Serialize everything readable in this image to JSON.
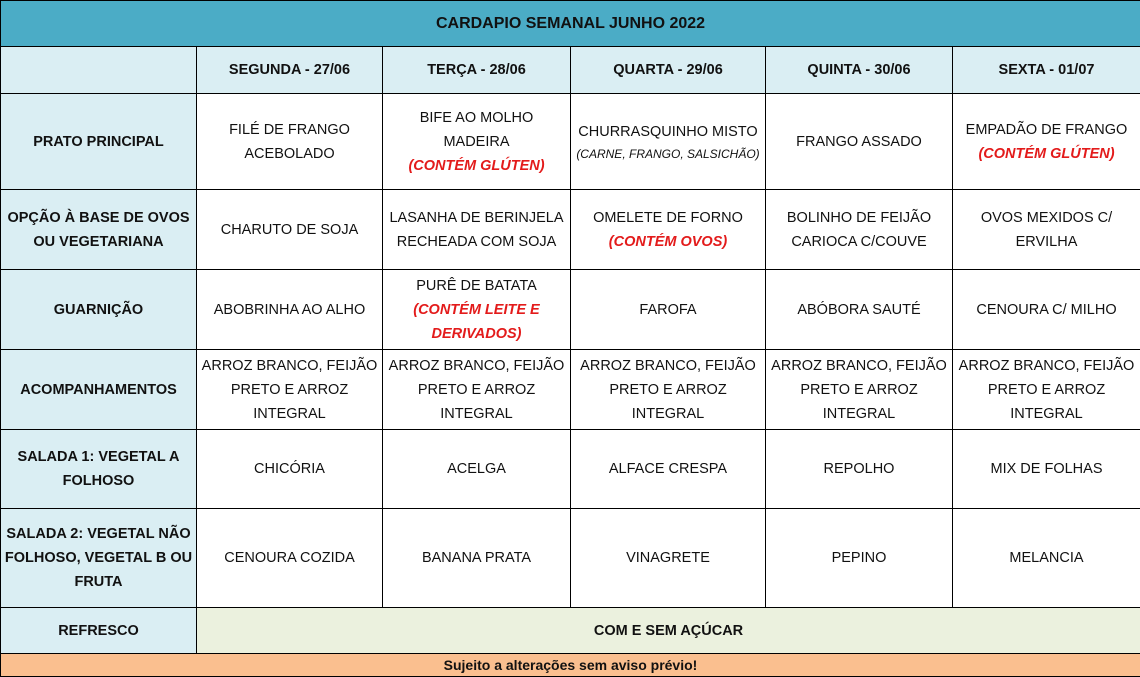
{
  "title": "CARDAPIO SEMANAL JUNHO 2022",
  "days": [
    "SEGUNDA - 27/06",
    "TERÇA - 28/06",
    "QUARTA - 29/06",
    "QUINTA - 30/06",
    "SEXTA - 01/07"
  ],
  "rows": [
    {
      "label": "PRATO PRINCIPAL",
      "cells": [
        {
          "text": "FILÉ DE FRANGO ACEBOLADO"
        },
        {
          "text": "BIFE AO MOLHO MADEIRA",
          "note": "(CONTÉM GLÚTEN)"
        },
        {
          "text": "CHURRASQUINHO MISTO",
          "sub": "(CARNE, FRANGO, SALSICHÃO)"
        },
        {
          "text": "FRANGO ASSADO"
        },
        {
          "text": "EMPADÃO DE FRANGO",
          "note": "(CONTÉM GLÚTEN)"
        }
      ]
    },
    {
      "label": "OPÇÃO À BASE DE OVOS OU VEGETARIANA",
      "cells": [
        {
          "text": "CHARUTO DE SOJA"
        },
        {
          "text": "LASANHA DE BERINJELA RECHEADA COM SOJA"
        },
        {
          "text": "OMELETE DE FORNO",
          "note": "(CONTÉM OVOS)"
        },
        {
          "text": "BOLINHO DE FEIJÃO CARIOCA C/COUVE"
        },
        {
          "text": "OVOS MEXIDOS C/ ERVILHA"
        }
      ]
    },
    {
      "label": "GUARNIÇÃO",
      "cells": [
        {
          "text": "ABOBRINHA AO ALHO"
        },
        {
          "text": "PURÊ DE BATATA",
          "note": "(CONTÉM LEITE E DERIVADOS)"
        },
        {
          "text": "FAROFA"
        },
        {
          "text": "ABÓBORA SAUTÉ"
        },
        {
          "text": "CENOURA C/ MILHO"
        }
      ]
    },
    {
      "label": "ACOMPANHAMENTOS",
      "cells": [
        {
          "text": "ARROZ BRANCO, FEIJÃO PRETO E ARROZ INTEGRAL"
        },
        {
          "text": "ARROZ BRANCO, FEIJÃO PRETO E ARROZ INTEGRAL"
        },
        {
          "text": "ARROZ BRANCO, FEIJÃO PRETO E ARROZ INTEGRAL"
        },
        {
          "text": "ARROZ BRANCO, FEIJÃO PRETO E ARROZ INTEGRAL"
        },
        {
          "text": "ARROZ BRANCO, FEIJÃO PRETO E ARROZ INTEGRAL"
        }
      ]
    },
    {
      "label": "SALADA 1: VEGETAL A FOLHOSO",
      "cells": [
        {
          "text": "CHICÓRIA"
        },
        {
          "text": "ACELGA"
        },
        {
          "text": "ALFACE CRESPA"
        },
        {
          "text": "REPOLHO"
        },
        {
          "text": "MIX DE FOLHAS"
        }
      ]
    },
    {
      "label": "SALADA 2: VEGETAL NÃO FOLHOSO, VEGETAL B OU FRUTA",
      "cells": [
        {
          "text": "CENOURA COZIDA"
        },
        {
          "text": "BANANA PRATA"
        },
        {
          "text": "VINAGRETE"
        },
        {
          "text": "PEPINO"
        },
        {
          "text": "MELANCIA"
        }
      ]
    }
  ],
  "refresco": {
    "label": "REFRESCO",
    "value": "COM E SEM AÇÚCAR"
  },
  "footer": "Sujeito a alterações sem aviso prévio!",
  "colors": {
    "title_bg": "#4BACC6",
    "header_bg": "#DAEEF3",
    "refresco_bg": "#EBF1DE",
    "footer_bg": "#FABF8F",
    "note": "#E31B1B"
  }
}
